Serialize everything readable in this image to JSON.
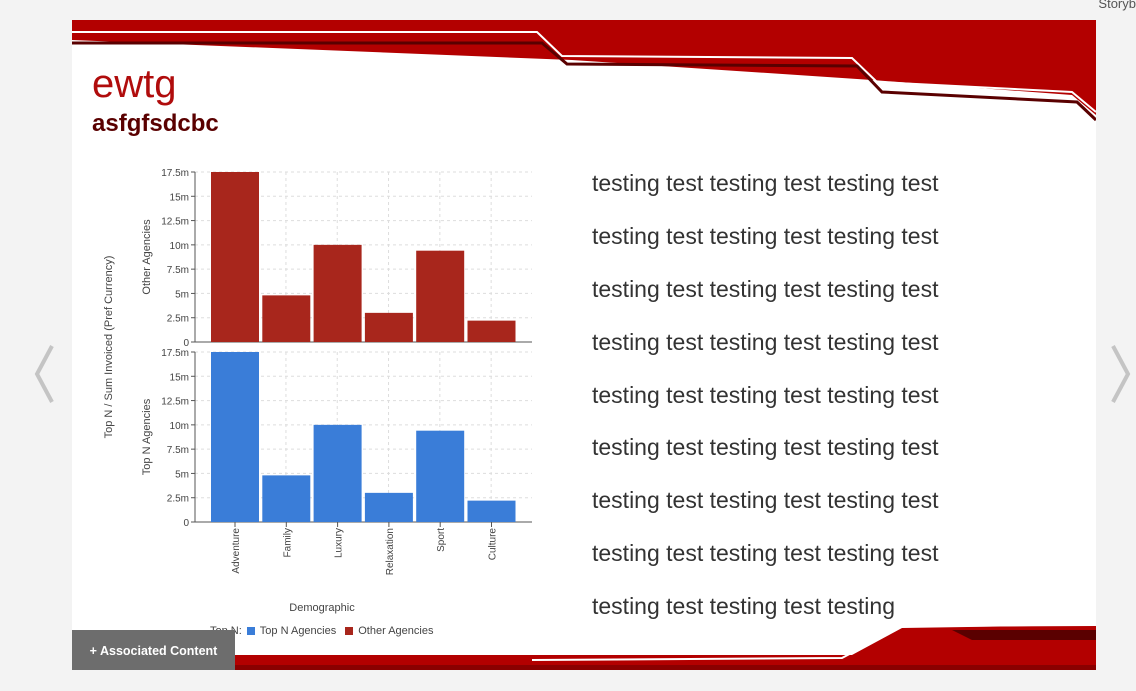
{
  "app": {
    "brand": "Storyb"
  },
  "slide": {
    "title": "ewtg",
    "subtitle": "asfgfsdcbc",
    "associated_label": "+ Associated Content",
    "text_lines": [
      "testing test testing test testing test",
      "testing test testing test testing test",
      "testing test testing test testing test",
      "testing test testing test testing test",
      "testing test testing test testing test",
      "testing test testing test testing test",
      "testing test testing test testing test",
      "testing test testing test testing test",
      "testing test testing test testing"
    ]
  },
  "colors": {
    "accent": "#b30000",
    "dark_accent": "#5a0000",
    "top_n": "#3a7dd8",
    "other": "#a8261c"
  },
  "chart_data": {
    "type": "bar",
    "categories": [
      "Adventure",
      "Family",
      "Luxury",
      "Relaxation",
      "Sport",
      "Culture"
    ],
    "series": [
      {
        "name": "Other Agencies",
        "values": [
          17500000,
          4800000,
          10000000,
          3000000,
          9400000,
          2200000
        ]
      },
      {
        "name": "Top N Agencies",
        "values": [
          17500000,
          4800000,
          10000000,
          3000000,
          9400000,
          2200000
        ]
      }
    ],
    "ylim": [
      0,
      17500000
    ],
    "yticks": [
      "0",
      "2.5m",
      "5m",
      "7.5m",
      "10m",
      "12.5m",
      "15m",
      "17.5m"
    ],
    "ylabel": "Top N / Sum Invoiced (Pref Currency)",
    "panel_labels": [
      "Other Agencies",
      "Top N Agencies"
    ],
    "xlabel": "Demographic",
    "legend_title": "Top N:",
    "legend": [
      "Top N Agencies",
      "Other Agencies"
    ],
    "legend_position": "bottom",
    "grid": true
  }
}
